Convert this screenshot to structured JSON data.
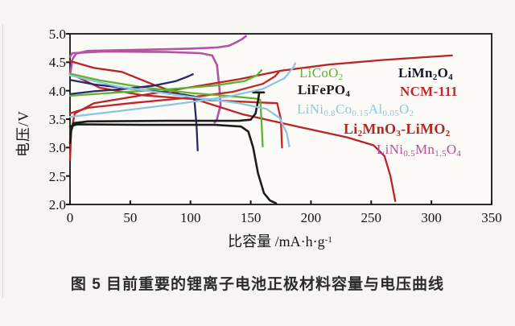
{
  "page": {
    "caption": "图 5  目前重要的锂离子电池正极材料容量与电压曲线"
  },
  "chart_data": {
    "type": "line",
    "title": "",
    "xlabel": "比容量 /mA·h·g^{-1}",
    "ylabel": "电压/V",
    "xlim": [
      0,
      350
    ],
    "ylim": [
      2.0,
      5.0
    ],
    "x_ticks": [
      "0",
      "50",
      "100",
      "150",
      "200",
      "250",
      "300",
      "350"
    ],
    "y_ticks": [
      "5.0",
      "4.5",
      "4.0",
      "3.5",
      "3.0",
      "2.5",
      "2.0"
    ],
    "grid": false,
    "legend_position": "inside-top-right",
    "frame_color": "#2b2b2b",
    "series": [
      {
        "name": "LiNi_{0.5}Mn_{1.5}O_{4}",
        "color": "#b551a6",
        "paths": {
          "charge": [
            [
              0,
              4.27
            ],
            [
              2,
              4.55
            ],
            [
              5,
              4.65
            ],
            [
              15,
              4.7
            ],
            [
              60,
              4.72
            ],
            [
              100,
              4.74
            ],
            [
              122,
              4.76
            ],
            [
              132,
              4.79
            ],
            [
              138,
              4.85
            ],
            [
              143,
              4.91
            ],
            [
              146,
              4.96
            ]
          ],
          "discharge": [
            [
              0,
              4.6
            ],
            [
              2,
              4.66
            ],
            [
              30,
              4.69
            ],
            [
              80,
              4.68
            ],
            [
              108,
              4.66
            ],
            [
              118,
              4.62
            ],
            [
              122,
              4.45
            ],
            [
              124,
              4.05
            ],
            [
              125,
              3.75
            ],
            [
              122,
              3.5
            ],
            [
              120,
              3.44
            ]
          ]
        }
      },
      {
        "name": "Li_{2}MnO_{3}-LiMO_{2}",
        "color": "#bb2328",
        "paths": {
          "charge": [
            [
              0,
              2.78
            ],
            [
              1,
              3.3
            ],
            [
              4,
              3.6
            ],
            [
              20,
              3.78
            ],
            [
              60,
              3.92
            ],
            [
              100,
              4.06
            ],
            [
              140,
              4.2
            ],
            [
              175,
              4.35
            ],
            [
              215,
              4.46
            ],
            [
              260,
              4.54
            ],
            [
              295,
              4.59
            ],
            [
              317,
              4.62
            ]
          ],
          "discharge": [
            [
              0,
              4.52
            ],
            [
              20,
              4.4
            ],
            [
              43,
              4.33
            ],
            [
              70,
              4.1
            ],
            [
              101,
              3.87
            ],
            [
              144,
              3.58
            ],
            [
              193,
              3.35
            ],
            [
              230,
              3.18
            ],
            [
              252,
              3.04
            ],
            [
              261,
              2.85
            ],
            [
              266,
              2.5
            ],
            [
              270,
              2.06
            ]
          ]
        }
      },
      {
        "name": "NCM-111",
        "color": "#c3242a",
        "paths": {
          "charge": [
            [
              0,
              3.6
            ],
            [
              15,
              3.7
            ],
            [
              50,
              3.78
            ],
            [
              95,
              3.87
            ],
            [
              135,
              3.98
            ],
            [
              160,
              4.12
            ],
            [
              170,
              4.25
            ],
            [
              173,
              4.32
            ]
          ],
          "discharge": [
            [
              0,
              4.3
            ],
            [
              25,
              4.05
            ],
            [
              60,
              3.92
            ],
            [
              110,
              3.84
            ],
            [
              150,
              3.8
            ],
            [
              172,
              3.78
            ],
            [
              175,
              3.5
            ],
            [
              176,
              3.0
            ]
          ]
        }
      },
      {
        "name": "LiCoO_{2}",
        "color": "#5fb232",
        "paths": {
          "charge": [
            [
              0,
              3.91
            ],
            [
              40,
              3.97
            ],
            [
              85,
              4.03
            ],
            [
              120,
              4.09
            ],
            [
              145,
              4.17
            ],
            [
              155,
              4.27
            ],
            [
              159,
              4.36
            ]
          ],
          "discharge": [
            [
              0,
              4.3
            ],
            [
              25,
              4.18
            ],
            [
              60,
              4.06
            ],
            [
              100,
              3.96
            ],
            [
              135,
              3.9
            ],
            [
              155,
              3.86
            ],
            [
              158,
              3.84
            ],
            [
              159,
              3.45
            ],
            [
              160,
              3.02
            ]
          ]
        }
      },
      {
        "name": "LiMn_{2}O_{4}",
        "color": "#29276b",
        "paths": {
          "charge": [
            [
              0,
              3.94
            ],
            [
              20,
              3.99
            ],
            [
              45,
              4.03
            ],
            [
              70,
              4.09
            ],
            [
              88,
              4.17
            ],
            [
              98,
              4.25
            ],
            [
              102,
              4.29
            ]
          ],
          "discharge": [
            [
              0,
              4.19
            ],
            [
              20,
              4.11
            ],
            [
              48,
              4.04
            ],
            [
              78,
              3.97
            ],
            [
              95,
              3.93
            ],
            [
              103,
              3.9
            ],
            [
              105,
              3.4
            ],
            [
              106,
              2.95
            ]
          ]
        }
      },
      {
        "name": "LiFePO_{4}",
        "color": "#1c1c1c",
        "paths": {
          "charge": [
            [
              0,
              3.08
            ],
            [
              1,
              3.3
            ],
            [
              3,
              3.43
            ],
            [
              15,
              3.46
            ],
            [
              80,
              3.47
            ],
            [
              140,
              3.47
            ],
            [
              150,
              3.49
            ],
            [
              154,
              3.6
            ],
            [
              156,
              3.82
            ],
            [
              157,
              3.96
            ]
          ],
          "charge_end_cap": [
            [
              152,
              3.97
            ],
            [
              161,
              3.97
            ]
          ],
          "discharge": [
            [
              0,
              3.37
            ],
            [
              6,
              3.41
            ],
            [
              60,
              3.4
            ],
            [
              120,
              3.4
            ],
            [
              142,
              3.37
            ],
            [
              148,
              3.28
            ],
            [
              152,
              3.0
            ],
            [
              156,
              2.55
            ],
            [
              161,
              2.2
            ],
            [
              166,
              2.07
            ],
            [
              171,
              2.02
            ]
          ]
        }
      },
      {
        "name": "LiNi_{0.8}Co_{0.15}Al_{0.05}O_{2}",
        "color": "#8fc6de",
        "paths": {
          "charge": [
            [
              0,
              3.54
            ],
            [
              40,
              3.64
            ],
            [
              90,
              3.77
            ],
            [
              130,
              3.89
            ],
            [
              160,
              4.03
            ],
            [
              178,
              4.22
            ],
            [
              185,
              4.4
            ],
            [
              187,
              4.48
            ]
          ],
          "discharge": [
            [
              0,
              4.27
            ],
            [
              40,
              4.07
            ],
            [
              90,
              3.92
            ],
            [
              140,
              3.78
            ],
            [
              163,
              3.68
            ],
            [
              174,
              3.52
            ],
            [
              180,
              3.25
            ],
            [
              182,
              3.02
            ]
          ]
        }
      }
    ]
  },
  "legend": {
    "items": [
      {
        "label": "LiCoO_{2}",
        "color": "#5fb232"
      },
      {
        "label": "LiMn_{2}O_{4}",
        "color": "#17162e"
      },
      {
        "label": "LiFePO_{4}",
        "color": "#1c1c1c"
      },
      {
        "label": "NCM-111",
        "color": "#c3272b"
      },
      {
        "label": "LiNi_{0.8}Co_{0.15}Al_{0.05}O_{2}",
        "color": "#8fc6de"
      },
      {
        "label": "Li_{2}MnO_{3}-LiMO_{2}",
        "color": "#ad2a26"
      },
      {
        "label": "LiNi_{0.5}Mn_{1.5}O_{4}",
        "color": "#b5519c"
      }
    ]
  }
}
